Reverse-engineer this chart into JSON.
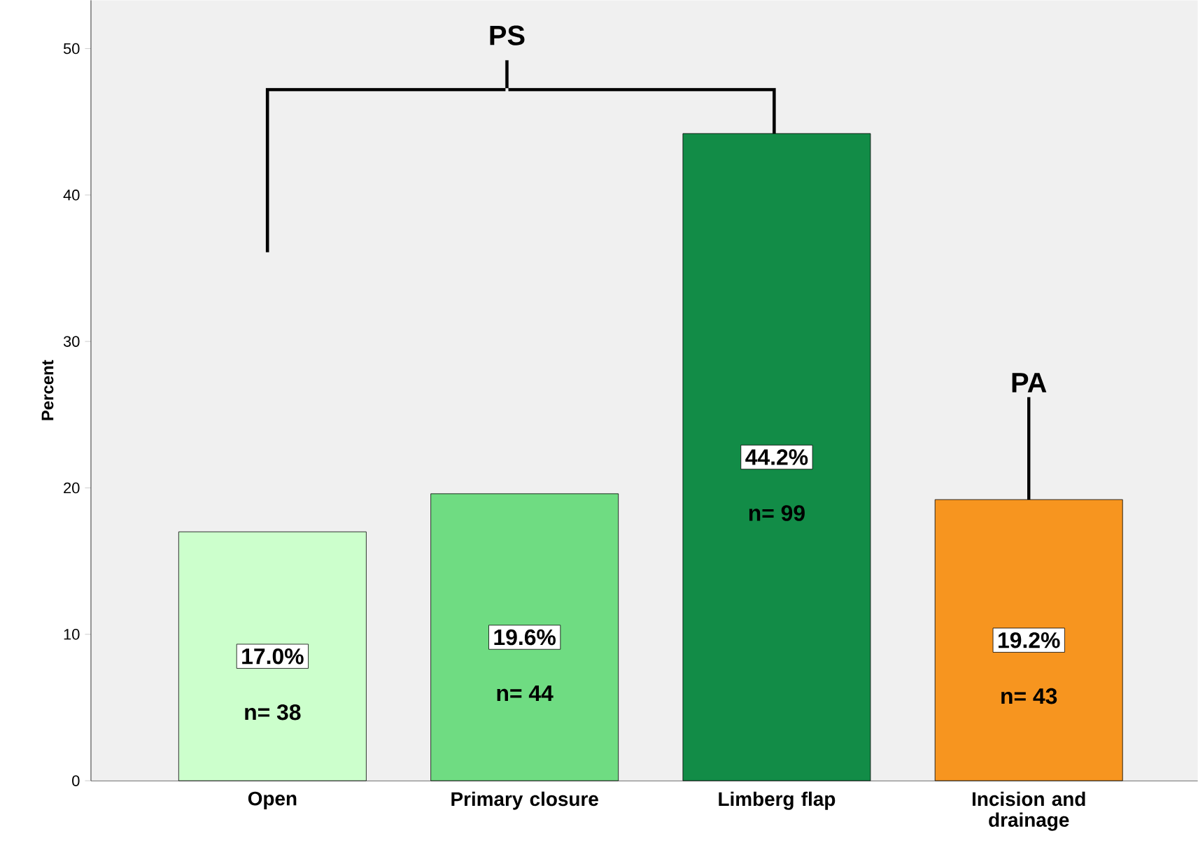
{
  "chart_data": {
    "type": "bar",
    "categories": [
      "Open",
      "Primary closure",
      "Limberg flap",
      "Incision and drainage"
    ],
    "values": [
      17.0,
      19.6,
      44.2,
      19.2
    ],
    "colors": [
      "#ccffcc",
      "#6fdc82",
      "#128c47",
      "#f7951f"
    ],
    "ylabel": "Percent",
    "ylim": [
      0,
      53.3
    ],
    "yticks": [
      0,
      10,
      20,
      30,
      40,
      50
    ],
    "value_labels": [
      "17.0%",
      "19.6%",
      "44.2%",
      "19.2%"
    ],
    "annotations": [
      "n= 38",
      "n= 44",
      "n= 99",
      "n= 43",
      "PS",
      {
        "text": "PA",
        "x": "Incision and drainage",
        "y": 19.2
      }
    ],
    "grid": false
  }
}
